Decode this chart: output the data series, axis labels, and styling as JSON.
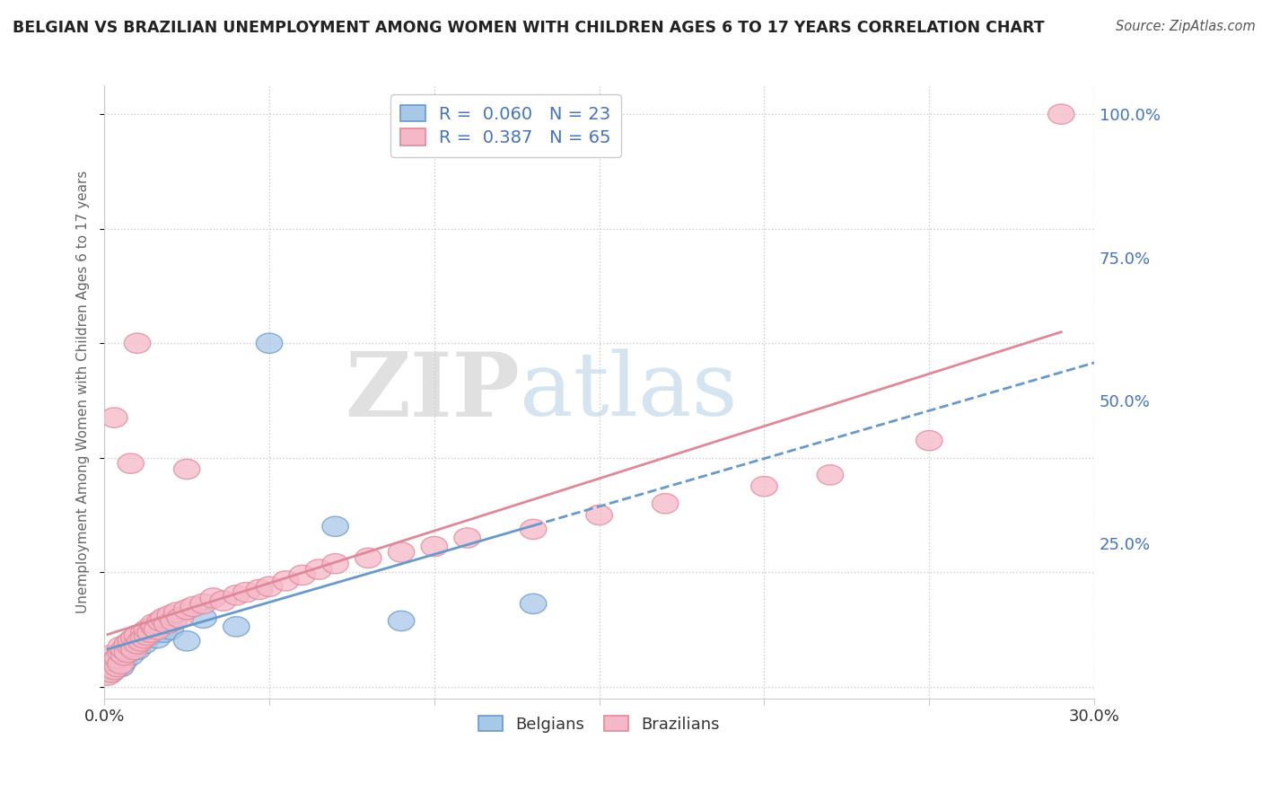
{
  "title": "BELGIAN VS BRAZILIAN UNEMPLOYMENT AMONG WOMEN WITH CHILDREN AGES 6 TO 17 YEARS CORRELATION CHART",
  "source": "Source: ZipAtlas.com",
  "ylabel": "Unemployment Among Women with Children Ages 6 to 17 years",
  "xlim": [
    0.0,
    0.3
  ],
  "ylim": [
    -0.02,
    1.05
  ],
  "ytick_labels": [
    "100.0%",
    "75.0%",
    "50.0%",
    "25.0%"
  ],
  "ytick_positions": [
    1.0,
    0.75,
    0.5,
    0.25
  ],
  "belgian_color": "#a8c8e8",
  "brazilian_color": "#f4b8c8",
  "belgian_edge": "#6699cc",
  "brazilian_edge": "#e08898",
  "line_belgian_color": "#6699cc",
  "line_brazilian_color": "#e08898",
  "R_belgian": 0.06,
  "N_belgian": 23,
  "R_brazilian": 0.387,
  "N_brazilian": 65,
  "belgian_x": [
    0.001,
    0.002,
    0.003,
    0.004,
    0.005,
    0.006,
    0.007,
    0.008,
    0.009,
    0.01,
    0.011,
    0.012,
    0.014,
    0.016,
    0.018,
    0.02,
    0.025,
    0.03,
    0.04,
    0.05,
    0.07,
    0.09,
    0.13
  ],
  "belgian_y": [
    0.03,
    0.025,
    0.04,
    0.05,
    0.035,
    0.045,
    0.06,
    0.055,
    0.07,
    0.065,
    0.08,
    0.075,
    0.09,
    0.085,
    0.095,
    0.1,
    0.08,
    0.12,
    0.105,
    0.6,
    0.28,
    0.115,
    0.145
  ],
  "brazilian_x": [
    0.001,
    0.001,
    0.002,
    0.002,
    0.003,
    0.003,
    0.004,
    0.004,
    0.005,
    0.005,
    0.005,
    0.006,
    0.006,
    0.007,
    0.007,
    0.008,
    0.008,
    0.009,
    0.009,
    0.01,
    0.01,
    0.011,
    0.012,
    0.012,
    0.013,
    0.013,
    0.014,
    0.015,
    0.015,
    0.016,
    0.017,
    0.018,
    0.019,
    0.02,
    0.021,
    0.022,
    0.023,
    0.025,
    0.027,
    0.03,
    0.033,
    0.036,
    0.04,
    0.043,
    0.047,
    0.05,
    0.055,
    0.06,
    0.065,
    0.07,
    0.08,
    0.09,
    0.1,
    0.11,
    0.13,
    0.15,
    0.17,
    0.2,
    0.22,
    0.25,
    0.003,
    0.008,
    0.01,
    0.025,
    0.29
  ],
  "brazilian_y": [
    0.02,
    0.035,
    0.025,
    0.055,
    0.03,
    0.045,
    0.035,
    0.05,
    0.04,
    0.06,
    0.07,
    0.055,
    0.065,
    0.075,
    0.06,
    0.07,
    0.08,
    0.065,
    0.085,
    0.075,
    0.09,
    0.08,
    0.095,
    0.085,
    0.09,
    0.1,
    0.095,
    0.105,
    0.11,
    0.1,
    0.115,
    0.12,
    0.11,
    0.125,
    0.115,
    0.13,
    0.12,
    0.135,
    0.14,
    0.145,
    0.155,
    0.15,
    0.16,
    0.165,
    0.17,
    0.175,
    0.185,
    0.195,
    0.205,
    0.215,
    0.225,
    0.235,
    0.245,
    0.26,
    0.275,
    0.3,
    0.32,
    0.35,
    0.37,
    0.43,
    0.47,
    0.39,
    0.6,
    0.38,
    1.0
  ],
  "watermark_zip": "ZIP",
  "watermark_atlas": "atlas",
  "bg_color": "#ffffff",
  "grid_color": "#cccccc",
  "title_color": "#222222",
  "axis_label_color": "#666666",
  "legend_border_color": "#cccccc"
}
